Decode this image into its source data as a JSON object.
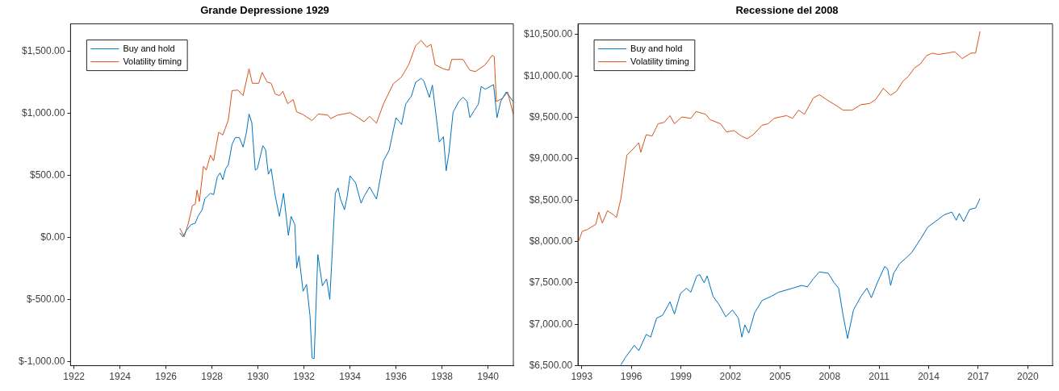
{
  "chart_data": [
    {
      "type": "line",
      "title": "Grande Depressione 1929",
      "legend": "top left",
      "xlim": [
        1921.85,
        1941.1
      ],
      "ylim": [
        -1030,
        1720
      ],
      "xticks": [
        1922,
        1924,
        1926,
        1928,
        1930,
        1932,
        1934,
        1936,
        1938,
        1940
      ],
      "yticks": [
        {
          "value": -1000,
          "label": "$-1,000.00"
        },
        {
          "value": -500,
          "label": "$-500.00"
        },
        {
          "value": 0,
          "label": "$0.00"
        },
        {
          "value": 500,
          "label": "$500.00"
        },
        {
          "value": 1000,
          "label": "$1,000.00"
        },
        {
          "value": 1500,
          "label": "$1,500.00"
        }
      ],
      "series": [
        {
          "name": "Buy and hold",
          "color": "#0072bd",
          "x": [
            1926.6,
            1926.73,
            1926.9,
            1927.09,
            1927.27,
            1927.39,
            1927.57,
            1927.69,
            1927.81,
            1927.93,
            1928.07,
            1928.23,
            1928.35,
            1928.47,
            1928.59,
            1928.71,
            1928.87,
            1929.01,
            1929.19,
            1929.35,
            1929.5,
            1929.61,
            1929.73,
            1929.88,
            1929.97,
            1930.21,
            1930.33,
            1930.45,
            1930.57,
            1930.75,
            1930.93,
            1931.11,
            1931.32,
            1931.44,
            1931.6,
            1931.68,
            1931.78,
            1931.96,
            1932.11,
            1932.26,
            1932.35,
            1932.44,
            1932.6,
            1932.8,
            1932.98,
            1933.12,
            1933.36,
            1933.48,
            1933.58,
            1933.76,
            1933.88,
            1934.0,
            1934.24,
            1934.48,
            1934.61,
            1934.85,
            1935.15,
            1935.45,
            1935.7,
            1936.0,
            1936.24,
            1936.42,
            1936.67,
            1936.85,
            1937.09,
            1937.21,
            1937.45,
            1937.58,
            1937.88,
            1938.06,
            1938.18,
            1938.3,
            1938.48,
            1938.73,
            1938.91,
            1939.09,
            1939.21,
            1939.39,
            1939.58,
            1939.7,
            1939.88,
            1940.24,
            1940.39,
            1940.55,
            1940.79,
            1941.09
          ],
          "values": [
            40,
            7,
            61,
            105,
            116,
            171,
            225,
            313,
            335,
            357,
            346,
            488,
            521,
            466,
            554,
            586,
            750,
            805,
            805,
            729,
            848,
            995,
            925,
            543,
            554,
            740,
            707,
            510,
            554,
            335,
            171,
            357,
            18,
            171,
            105,
            -245,
            -147,
            -431,
            -376,
            -628,
            -967,
            -974,
            -136,
            -387,
            -332,
            -497,
            357,
            400,
            313,
            225,
            335,
            497,
            442,
            277,
            332,
            408,
            310,
            616,
            703,
            965,
            910,
            1074,
            1140,
            1249,
            1282,
            1260,
            1129,
            1227,
            769,
            812,
            539,
            681,
            1009,
            1096,
            1129,
            1096,
            965,
            1020,
            1074,
            1216,
            1194,
            1231,
            965,
            1096,
            1172,
            1096
          ]
        },
        {
          "name": "Volatility timing",
          "color": "#d95319",
          "x": [
            1926.6,
            1926.79,
            1926.97,
            1927.15,
            1927.27,
            1927.35,
            1927.45,
            1927.63,
            1927.75,
            1927.93,
            1928.07,
            1928.29,
            1928.47,
            1928.71,
            1928.87,
            1929.13,
            1929.35,
            1929.61,
            1929.75,
            1930.03,
            1930.18,
            1930.39,
            1930.57,
            1930.75,
            1930.93,
            1931.08,
            1931.29,
            1931.53,
            1931.68,
            1931.96,
            1932.35,
            1932.62,
            1933.04,
            1933.16,
            1933.46,
            1934.0,
            1934.36,
            1934.61,
            1934.85,
            1935.15,
            1935.45,
            1935.88,
            1936.24,
            1936.55,
            1936.85,
            1937.09,
            1937.33,
            1937.52,
            1937.7,
            1938.06,
            1938.3,
            1938.42,
            1938.91,
            1939.21,
            1939.45,
            1939.88,
            1940.18,
            1940.27,
            1940.36,
            1940.61,
            1940.85,
            1941.09
          ],
          "values": [
            76,
            7,
            116,
            258,
            269,
            383,
            291,
            575,
            543,
            663,
            619,
            848,
            826,
            947,
            1183,
            1187,
            1143,
            1358,
            1242,
            1242,
            1329,
            1253,
            1242,
            1155,
            1143,
            1176,
            1078,
            1111,
            1012,
            990,
            942,
            995,
            986,
            958,
            986,
            1005,
            965,
            932,
            976,
            921,
            1074,
            1238,
            1293,
            1391,
            1544,
            1587,
            1533,
            1555,
            1391,
            1358,
            1347,
            1434,
            1434,
            1347,
            1336,
            1391,
            1467,
            1456,
            1096,
            1118,
            1172,
            998
          ]
        }
      ]
    },
    {
      "type": "line",
      "title": "Recessione del 2008",
      "legend": "top left",
      "xlim": [
        1992.77,
        2021.5
      ],
      "ylim": [
        6500,
        10630
      ],
      "xticks": [
        1993,
        1996,
        1999,
        2002,
        2005,
        2008,
        2011,
        2014,
        2017,
        2020
      ],
      "yticks": [
        {
          "value": 6500,
          "label": "$6,500.00"
        },
        {
          "value": 7000,
          "label": "$7,000.00"
        },
        {
          "value": 7500,
          "label": "$7,500.00"
        },
        {
          "value": 8000,
          "label": "$8,000.00"
        },
        {
          "value": 8500,
          "label": "$8,500.00"
        },
        {
          "value": 9000,
          "label": "$9,000.00"
        },
        {
          "value": 9500,
          "label": "$9,500.00"
        },
        {
          "value": 10000,
          "label": "$10,000.00"
        },
        {
          "value": 10500,
          "label": "$10,500.00"
        }
      ],
      "series": [
        {
          "name": "Buy and hold",
          "color": "#0072bd",
          "x": [
            1995.37,
            1995.64,
            1996.18,
            1996.45,
            1996.9,
            1997.17,
            1997.53,
            1997.89,
            1998.34,
            1998.61,
            1998.97,
            1999.33,
            1999.6,
            1999.96,
            2000.14,
            2000.41,
            2000.59,
            2000.95,
            2001.31,
            2001.72,
            2002.12,
            2002.48,
            2002.69,
            2002.87,
            2003.11,
            2003.47,
            2003.92,
            2004.46,
            2004.91,
            2005.76,
            2006.3,
            2006.66,
            2007.02,
            2007.38,
            2007.92,
            2008.28,
            2008.55,
            2008.82,
            2009.09,
            2009.45,
            2009.9,
            2010.26,
            2010.53,
            2010.89,
            2011.34,
            2011.52,
            2011.7,
            2011.88,
            2012.24,
            2012.6,
            2012.96,
            2013.5,
            2013.95,
            2014.4,
            2014.94,
            2015.4,
            2015.67,
            2015.85,
            2016.12,
            2016.48,
            2016.84,
            2017.11
          ],
          "values": [
            6510,
            6599,
            6746,
            6681,
            6878,
            6845,
            7075,
            7108,
            7272,
            7124,
            7370,
            7436,
            7387,
            7584,
            7600,
            7502,
            7584,
            7337,
            7239,
            7091,
            7173,
            7075,
            6845,
            6993,
            6894,
            7141,
            7288,
            7337,
            7387,
            7436,
            7469,
            7453,
            7551,
            7633,
            7617,
            7502,
            7436,
            7108,
            6829,
            7173,
            7337,
            7436,
            7321,
            7502,
            7699,
            7666,
            7469,
            7617,
            7732,
            7797,
            7863,
            8027,
            8175,
            8241,
            8323,
            8356,
            8257,
            8339,
            8241,
            8388,
            8405,
            8520
          ]
        },
        {
          "name": "Volatility timing",
          "color": "#d95319",
          "x": [
            1992.77,
            1993.04,
            1993.31,
            1993.85,
            1994.03,
            1994.24,
            1994.56,
            1994.92,
            1995.1,
            1995.37,
            1995.64,
            1995.73,
            1995.99,
            1996.45,
            1996.57,
            1996.9,
            1997.26,
            1997.62,
            1997.98,
            1998.34,
            1998.61,
            1999.06,
            1999.6,
            1999.92,
            2000.5,
            2000.77,
            2001.4,
            2001.76,
            2002.21,
            2002.66,
            2003.02,
            2003.38,
            2003.92,
            2004.28,
            2004.64,
            2005.0,
            2005.4,
            2005.76,
            2006.12,
            2006.48,
            2007.02,
            2007.38,
            2007.92,
            2008.46,
            2008.82,
            2009.36,
            2009.9,
            2010.44,
            2010.8,
            2011.25,
            2011.7,
            2012.06,
            2012.42,
            2012.78,
            2013.14,
            2013.5,
            2013.86,
            2014.22,
            2014.59,
            2015.13,
            2015.58,
            2016.03,
            2016.57,
            2016.84,
            2017.11
          ],
          "values": [
            7988,
            8126,
            8142,
            8208,
            8355,
            8224,
            8372,
            8323,
            8290,
            8520,
            8914,
            9045,
            9094,
            9193,
            9078,
            9291,
            9275,
            9423,
            9439,
            9521,
            9423,
            9505,
            9488,
            9571,
            9538,
            9472,
            9423,
            9324,
            9341,
            9275,
            9242,
            9291,
            9406,
            9423,
            9488,
            9505,
            9521,
            9488,
            9587,
            9538,
            9735,
            9774,
            9702,
            9636,
            9587,
            9587,
            9653,
            9669,
            9718,
            9850,
            9768,
            9817,
            9932,
            9998,
            10096,
            10146,
            10244,
            10277,
            10260,
            10277,
            10293,
            10211,
            10277,
            10277,
            10539
          ]
        }
      ]
    }
  ]
}
